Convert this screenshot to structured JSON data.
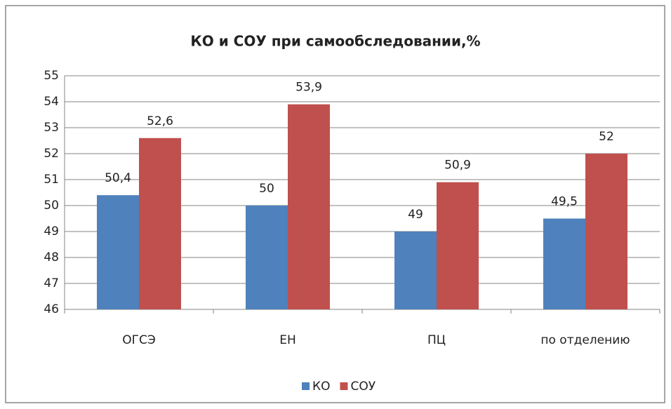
{
  "chart_data": {
    "type": "bar",
    "title": "КО и СОУ при самообследовании,%",
    "categories": [
      "ОГСЭ",
      "ЕН",
      "ПЦ",
      "по отделению"
    ],
    "series": [
      {
        "name": "КО",
        "color": "#4f81bd",
        "values": [
          50.4,
          50,
          49,
          49.5
        ],
        "value_labels": [
          "50,4",
          "50",
          "49",
          "49,5"
        ]
      },
      {
        "name": "СОУ",
        "color": "#c0504d",
        "values": [
          52.6,
          53.9,
          50.9,
          52
        ],
        "value_labels": [
          "52,6",
          "53,9",
          "50,9",
          "52"
        ]
      }
    ],
    "ylim": [
      46,
      55
    ],
    "yticks": [
      46,
      47,
      48,
      49,
      50,
      51,
      52,
      53,
      54,
      55
    ],
    "grid": true,
    "legend": "bottom"
  }
}
